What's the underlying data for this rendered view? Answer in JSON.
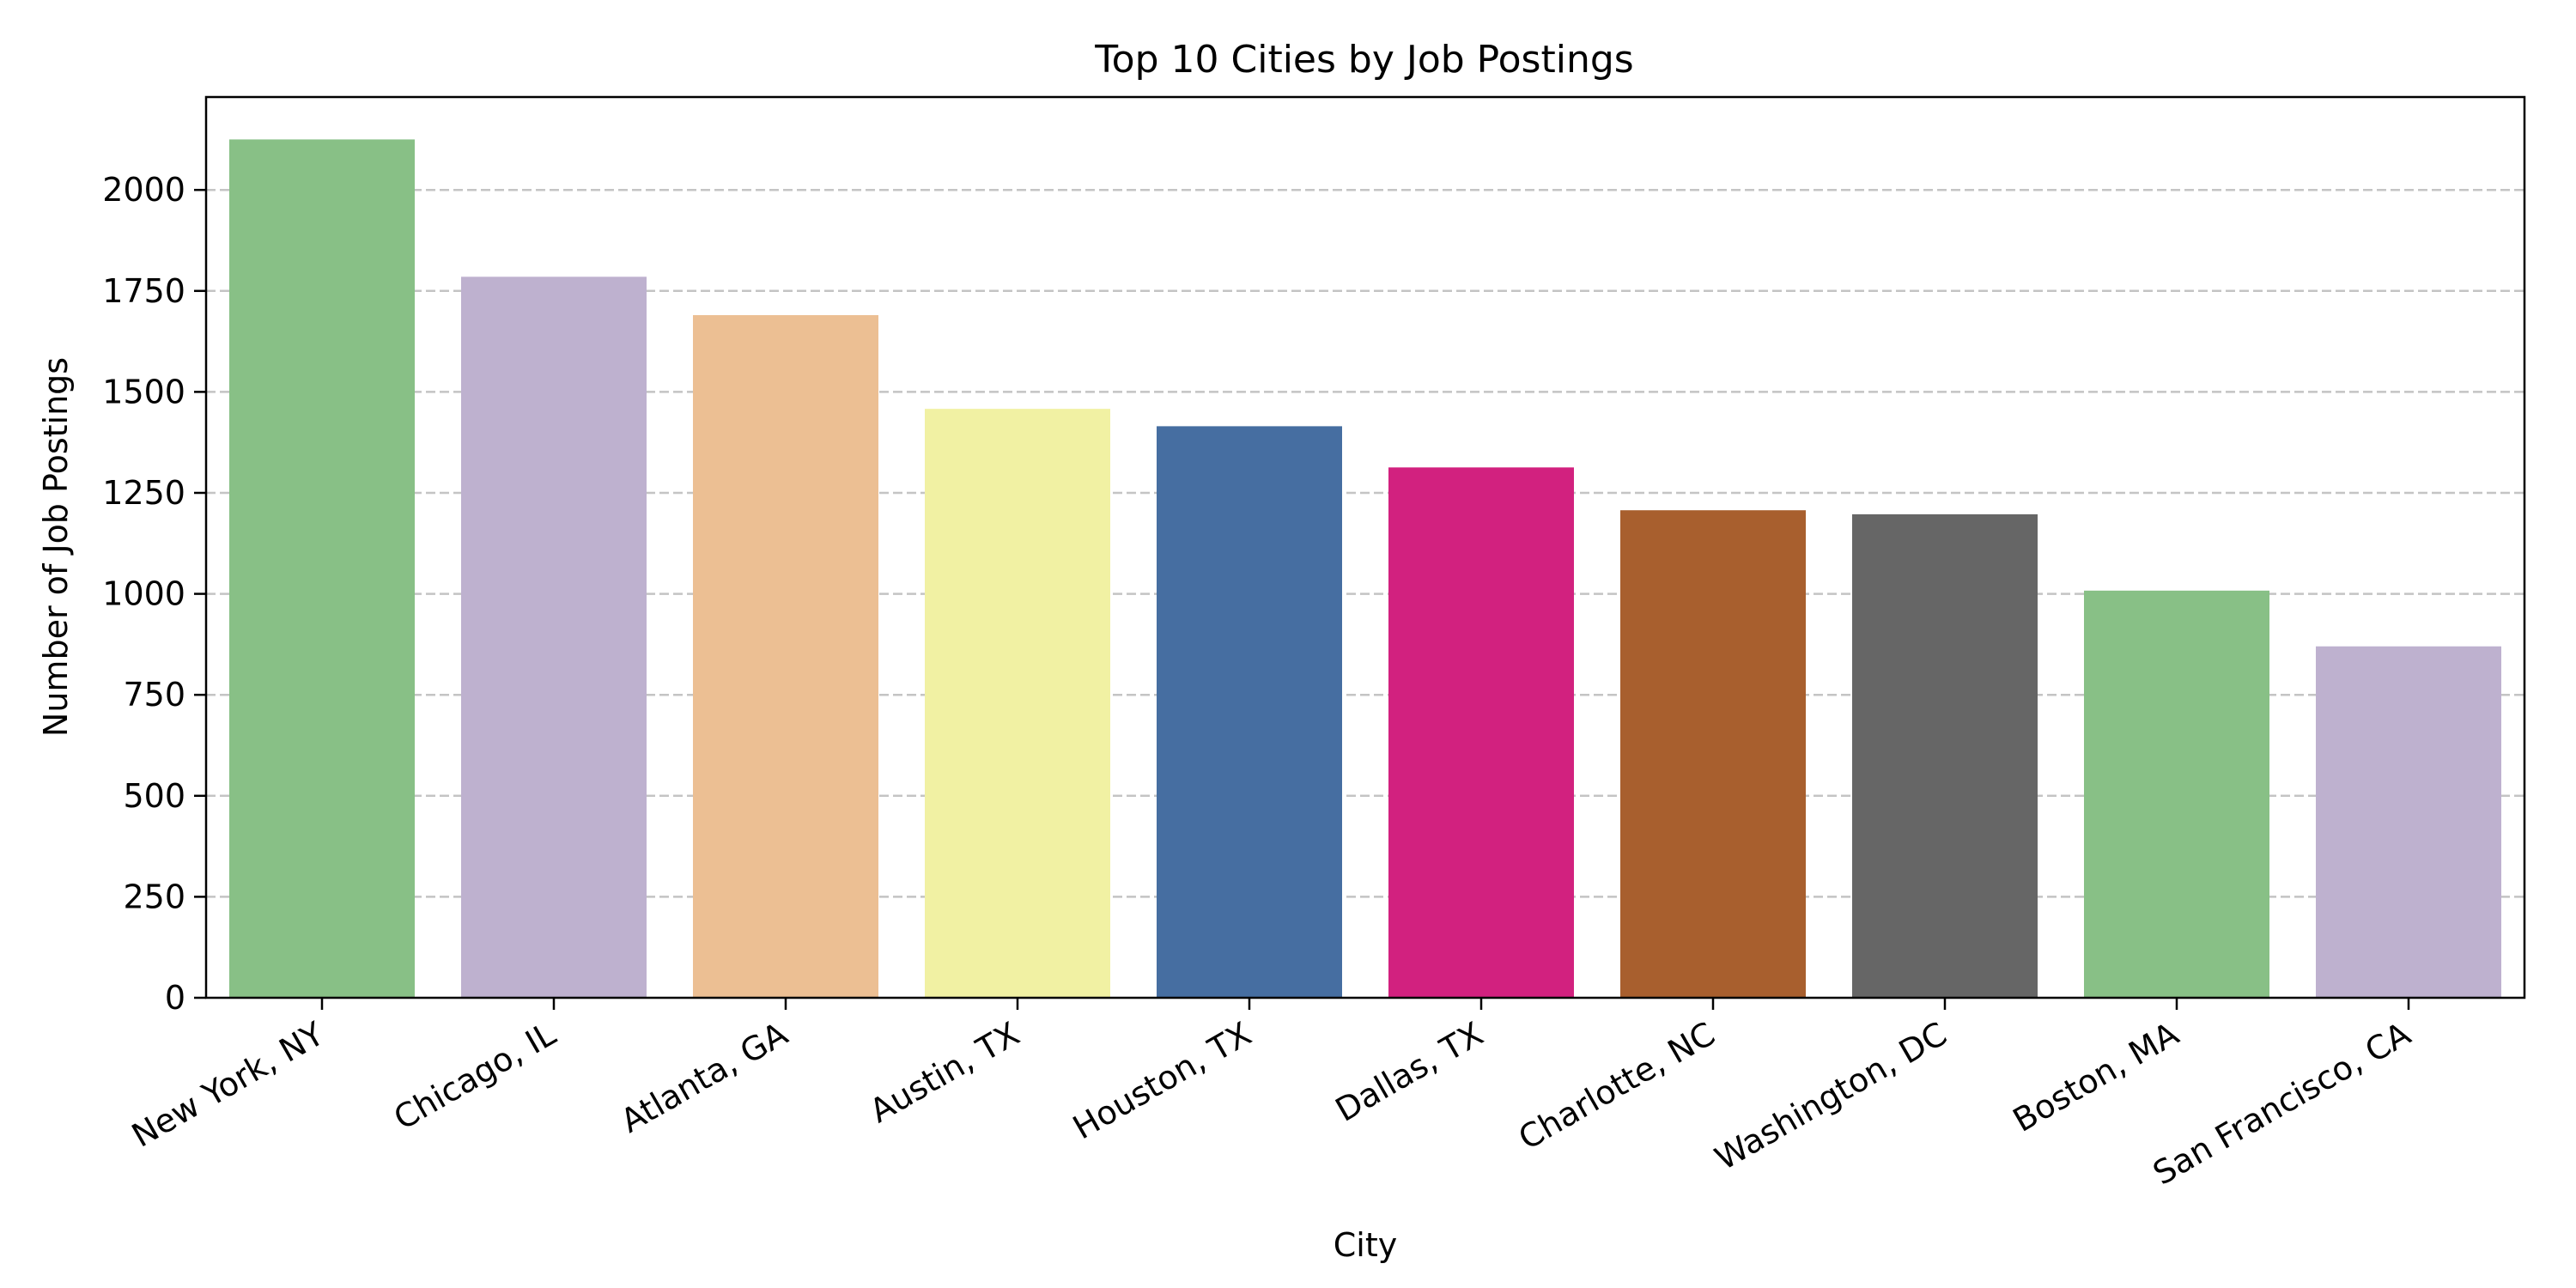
{
  "chart_data": {
    "type": "bar",
    "title": "Top 10 Cities by Job Postings",
    "xlabel": "City",
    "ylabel": "Number of Job Postings",
    "categories": [
      "New York, NY",
      "Chicago, IL",
      "Atlanta, GA",
      "Austin, TX",
      "Houston, TX",
      "Dallas, TX",
      "Charlotte, NC",
      "Washington, DC",
      "Boston, MA",
      "San Francisco, CA"
    ],
    "values": [
      2125,
      1785,
      1690,
      1458,
      1415,
      1313,
      1207,
      1197,
      1008,
      870
    ],
    "colors": [
      "#88c086",
      "#beb1cf",
      "#ecbf93",
      "#f1f1a3",
      "#466ea1",
      "#d2217f",
      "#a85f2e",
      "#666666",
      "#88c086",
      "#beb1cf"
    ],
    "ylim": [
      0,
      2230
    ],
    "yticks": [
      0,
      250,
      500,
      750,
      1000,
      1250,
      1500,
      1750,
      2000
    ],
    "ytick_labels": [
      "0",
      "250",
      "500",
      "750",
      "1000",
      "1250",
      "1500",
      "1750",
      "2000"
    ],
    "grid": "y-dashed",
    "legend": "none"
  }
}
